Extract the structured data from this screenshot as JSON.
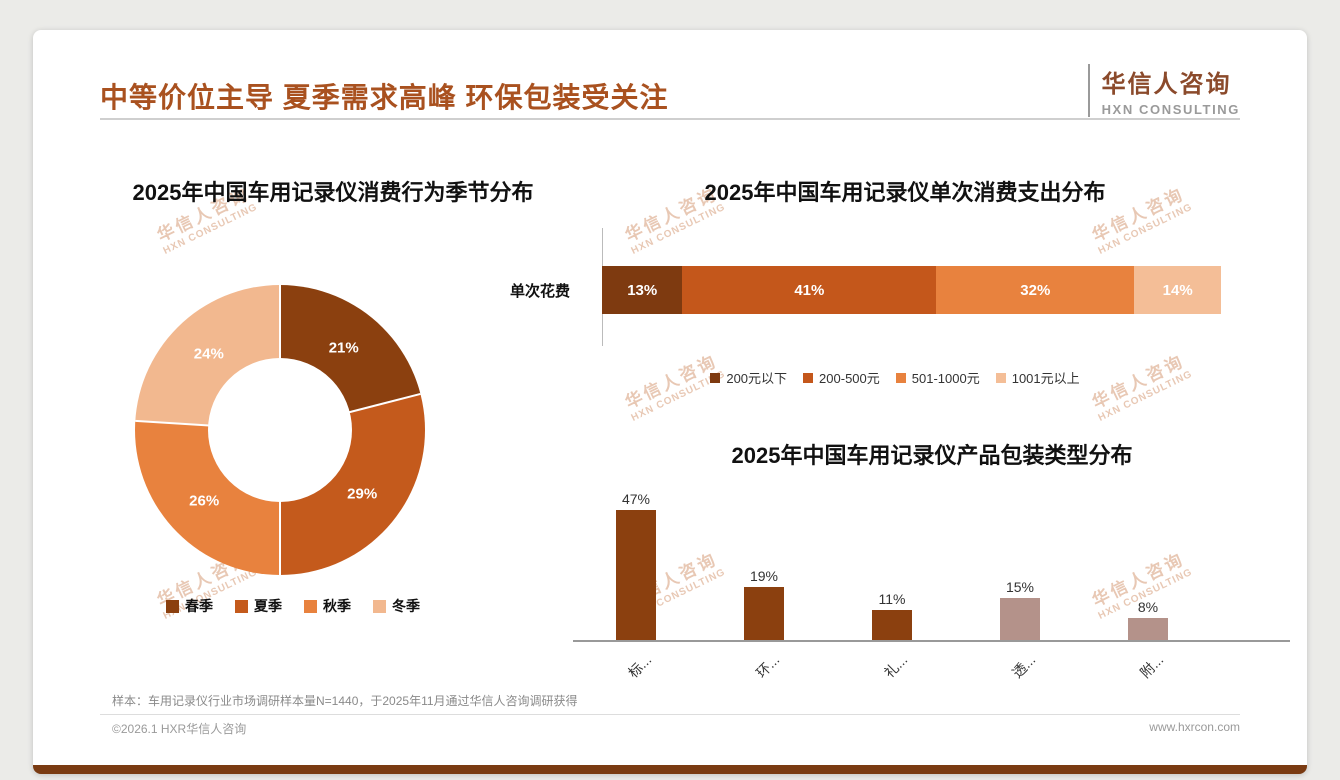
{
  "page": {
    "title": "中等价位主导 夏季需求高峰 环保包装受关注",
    "logo": {
      "name": "华信人咨询",
      "sub": "HXN CONSULTING"
    },
    "watermark": {
      "line1": "华信人咨询",
      "line2": "HXN CONSULTING"
    },
    "footnote": "样本：车用记录仪行业市场调研样本量N=1440，于2025年11月通过华信人咨询调研获得",
    "footer": {
      "left": "©2026.1 HXR华信人咨询",
      "right": "www.hxrcon.com"
    }
  },
  "colors": {
    "accent_title": "#A9511F",
    "brand_brown": "#8B4A2B",
    "card_bottom_bar": "#7A3B12",
    "dark_brown": "#8B400F",
    "dark_orange": "#C45A1C",
    "orange": "#E8823E",
    "peach": "#F2B88F",
    "mauve": "#B4928A"
  },
  "chart_data": [
    {
      "type": "pie",
      "donut": true,
      "title": "2025年中国车用记录仪消费行为季节分布",
      "categories": [
        "春季",
        "夏季",
        "秋季",
        "冬季"
      ],
      "values": [
        21,
        29,
        26,
        24
      ],
      "unit": "%",
      "colors": [
        "#8B400F",
        "#C45A1C",
        "#E8823E",
        "#F2B88F"
      ],
      "legend_position": "bottom"
    },
    {
      "type": "bar",
      "variant": "horizontal-stacked",
      "title": "2025年中国车用记录仪单次消费支出分布",
      "row_label": "单次花费",
      "categories": [
        "200元以下",
        "200-500元",
        "501-1000元",
        "1001元以上"
      ],
      "values": [
        13,
        41,
        32,
        14
      ],
      "unit": "%",
      "colors": [
        "#7E3A10",
        "#C4571B",
        "#E8823E",
        "#F4BE97"
      ],
      "legend_position": "bottom",
      "xlim": [
        0,
        100
      ]
    },
    {
      "type": "bar",
      "title": "2025年中国车用记录仪产品包装类型分布",
      "categories": [
        "标...",
        "环...",
        "礼...",
        "透...",
        "附..."
      ],
      "values": [
        47,
        19,
        11,
        15,
        8
      ],
      "unit": "%",
      "colors": [
        "#8B400F",
        "#8B400F",
        "#8B400F",
        "#B4928A",
        "#B4928A"
      ],
      "ylim": [
        0,
        50
      ],
      "x_labels_rotated": true
    }
  ]
}
